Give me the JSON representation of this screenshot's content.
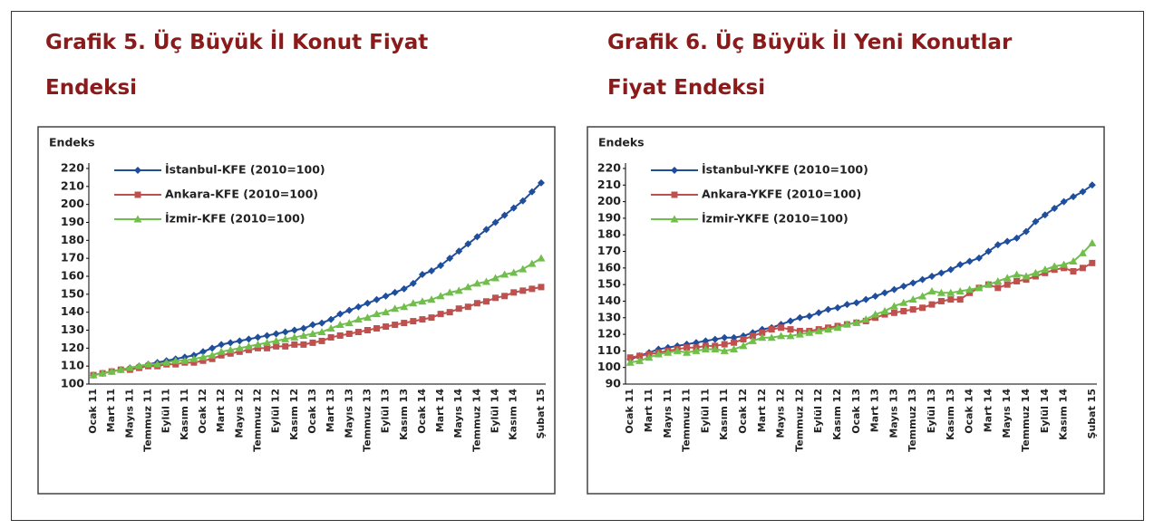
{
  "chart_data": [
    {
      "type": "line",
      "title": "Grafik 5. Üç Büyük İl Konut Fiyat Endeksi",
      "y_label": "Endeks",
      "categories": [
        "Ocak 11",
        null,
        "Mart 11",
        null,
        "Mayıs 11",
        null,
        "Temmuz 11",
        null,
        "Eylül 11",
        null,
        "Kasım 11",
        null,
        "Ocak 12",
        null,
        "Mart 12",
        null,
        "Mayıs 12",
        null,
        "Temmuz 12",
        null,
        "Eylül 12",
        null,
        "Kasım 12",
        null,
        "Ocak 13",
        null,
        "Mart 13",
        null,
        "Mayıs 13",
        null,
        "Temmuz 13",
        null,
        "Eylül 13",
        null,
        "Kasım 13",
        null,
        "Ocak 14",
        null,
        "Mart 14",
        null,
        "Mayıs 14",
        null,
        "Temmuz 14",
        null,
        "Eylül 14",
        null,
        "Kasım 14",
        null,
        null,
        "Şubat 15"
      ],
      "series": [
        {
          "name": "İstanbul-KFE (2010=100)",
          "color": "#1f4e9c",
          "marker": "diamond",
          "values": [
            105,
            106,
            107,
            108,
            109,
            110,
            111,
            112,
            113,
            114,
            115,
            116,
            118,
            120,
            122,
            123,
            124,
            125,
            126,
            127,
            128,
            129,
            130,
            131,
            133,
            134,
            136,
            139,
            141,
            143,
            145,
            147,
            149,
            151,
            153,
            156,
            161,
            163,
            166,
            170,
            174,
            178,
            182,
            186,
            190,
            194,
            198,
            202,
            207,
            212
          ]
        },
        {
          "name": "Ankara-KFE (2010=100)",
          "color": "#c0504d",
          "marker": "square",
          "values": [
            105,
            106,
            107,
            108,
            108,
            109,
            110,
            110,
            111,
            111,
            112,
            112,
            113,
            114,
            116,
            117,
            118,
            119,
            120,
            120,
            121,
            121,
            122,
            122,
            123,
            124,
            126,
            127,
            128,
            129,
            130,
            131,
            132,
            133,
            134,
            135,
            136,
            137,
            139,
            140,
            142,
            143,
            145,
            146,
            148,
            149,
            151,
            152,
            153,
            154
          ]
        },
        {
          "name": "İzmir-KFE (2010=100)",
          "color": "#6fbf4a",
          "marker": "triangle",
          "values": [
            105,
            106,
            107,
            108,
            109,
            110,
            111,
            111,
            112,
            113,
            113,
            114,
            115,
            116,
            118,
            119,
            120,
            121,
            122,
            123,
            124,
            125,
            126,
            127,
            128,
            129,
            131,
            133,
            134,
            136,
            137,
            139,
            140,
            142,
            143,
            145,
            146,
            147,
            149,
            151,
            152,
            154,
            156,
            157,
            159,
            161,
            162,
            164,
            167,
            170
          ]
        }
      ],
      "ylim": [
        100,
        220
      ],
      "yticks": [
        100,
        110,
        120,
        130,
        140,
        150,
        160,
        170,
        180,
        190,
        200,
        210,
        220
      ],
      "grid": false,
      "legend": "top-left"
    },
    {
      "type": "line",
      "title": "Grafik 6. Üç Büyük İl Yeni Konutlar Fiyat Endeksi",
      "y_label": "Endeks",
      "categories": [
        "Ocak 11",
        null,
        "Mart 11",
        null,
        "Mayıs 11",
        null,
        "Temmuz 11",
        null,
        "Eylül 11",
        null,
        "Kasım 11",
        null,
        "Ocak 12",
        null,
        "Mart 12",
        null,
        "Mayıs 12",
        null,
        "Temmuz 12",
        null,
        "Eylül 12",
        null,
        "Kasım 12",
        null,
        "Ocak 13",
        null,
        "Mart 13",
        null,
        "Mayıs 13",
        null,
        "Temmuz 13",
        null,
        "Eylül 13",
        null,
        "Kasım 13",
        null,
        "Ocak 14",
        null,
        "Mart 14",
        null,
        "Mayıs 14",
        null,
        "Temmuz 14",
        null,
        "Eylül 14",
        null,
        "Kasım 14",
        null,
        null,
        "Şubat 15"
      ],
      "series": [
        {
          "name": "İstanbul-YKFE (2010=100)",
          "color": "#1f4e9c",
          "marker": "diamond",
          "values": [
            105,
            107,
            109,
            111,
            112,
            113,
            114,
            115,
            116,
            117,
            118,
            118,
            119,
            121,
            123,
            124,
            126,
            128,
            130,
            131,
            133,
            135,
            136,
            138,
            139,
            141,
            143,
            145,
            147,
            149,
            151,
            153,
            155,
            157,
            159,
            162,
            164,
            166,
            170,
            174,
            176,
            178,
            182,
            188,
            192,
            196,
            200,
            203,
            206,
            210
          ]
        },
        {
          "name": "Ankara-YKFE (2010=100)",
          "color": "#c0504d",
          "marker": "square",
          "values": [
            106,
            107,
            108,
            109,
            110,
            111,
            112,
            112,
            113,
            113,
            114,
            115,
            117,
            119,
            121,
            123,
            124,
            123,
            122,
            122,
            123,
            124,
            125,
            126,
            127,
            128,
            130,
            132,
            133,
            134,
            135,
            136,
            138,
            140,
            141,
            141,
            145,
            148,
            150,
            148,
            150,
            152,
            153,
            155,
            157,
            159,
            160,
            158,
            160,
            163
          ]
        },
        {
          "name": "İzmir-YKFE (2010=100)",
          "color": "#6fbf4a",
          "marker": "triangle",
          "values": [
            103,
            104,
            106,
            108,
            109,
            110,
            109,
            110,
            111,
            111,
            110,
            111,
            113,
            116,
            118,
            118,
            119,
            119,
            120,
            121,
            122,
            123,
            124,
            126,
            127,
            129,
            132,
            134,
            137,
            139,
            141,
            143,
            146,
            145,
            145,
            146,
            147,
            148,
            150,
            152,
            154,
            156,
            155,
            157,
            159,
            161,
            162,
            164,
            169,
            175
          ]
        }
      ],
      "ylim": [
        90,
        220
      ],
      "yticks": [
        90,
        100,
        110,
        120,
        130,
        140,
        150,
        160,
        170,
        180,
        190,
        200,
        210,
        220
      ],
      "grid": false,
      "legend": "top-left"
    }
  ]
}
